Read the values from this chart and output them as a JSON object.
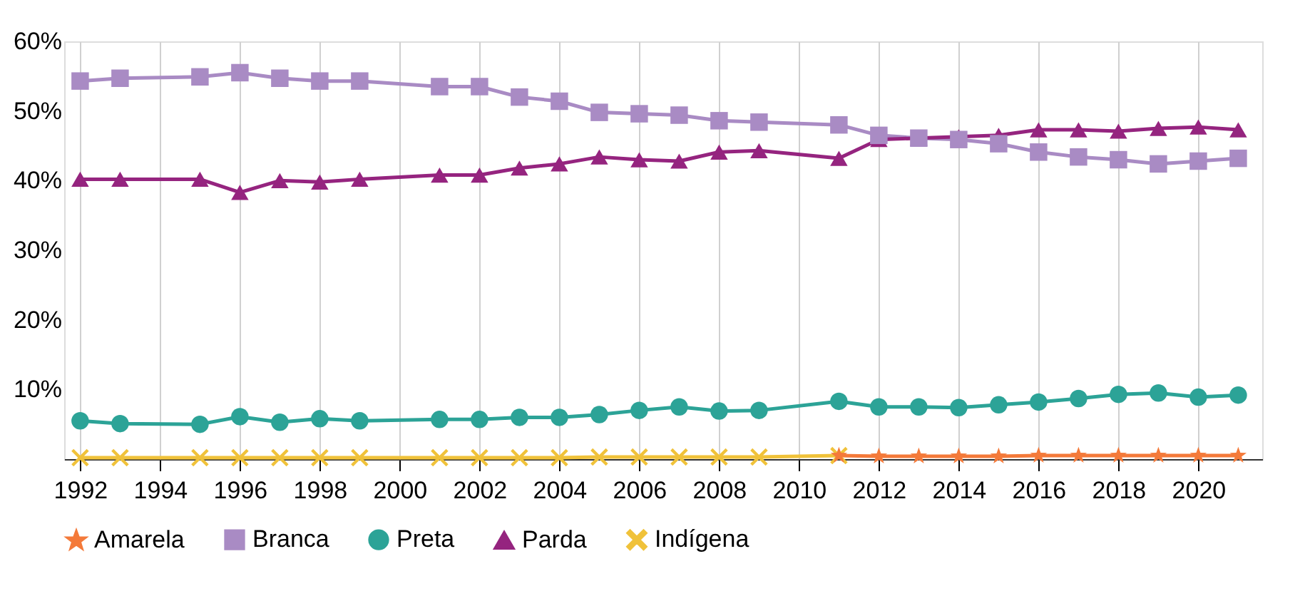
{
  "chart_data": {
    "type": "line",
    "xlim": [
      1991.6,
      2021.6
    ],
    "xticks": [
      1992,
      1994,
      1996,
      1998,
      2000,
      2002,
      2004,
      2006,
      2008,
      2010,
      2012,
      2014,
      2016,
      2018,
      2020
    ],
    "ylim": [
      0,
      60
    ],
    "yticks": [
      {
        "value": 10,
        "label": "10%"
      },
      {
        "value": 20,
        "label": "20%"
      },
      {
        "value": 30,
        "label": "30%"
      },
      {
        "value": 40,
        "label": "40%"
      },
      {
        "value": 50,
        "label": "50%"
      },
      {
        "value": 60,
        "label": "60%"
      }
    ],
    "grid": "x",
    "legend": "bottom",
    "line_style": "solid",
    "series": [
      {
        "name": "Amarela",
        "color": "#f47a3a",
        "marker": "star",
        "x": [
          2011,
          2012,
          2013,
          2014,
          2015,
          2016,
          2017,
          2018,
          2019,
          2020,
          2021
        ],
        "values": [
          0.5,
          0.4,
          0.4,
          0.4,
          0.4,
          0.5,
          0.5,
          0.5,
          0.5,
          0.5,
          0.5
        ]
      },
      {
        "name": "Branca",
        "color": "#a98bc4",
        "marker": "square",
        "x": [
          1992,
          1993,
          1995,
          1996,
          1997,
          1998,
          1999,
          2001,
          2002,
          2003,
          2004,
          2005,
          2006,
          2007,
          2008,
          2009,
          2011,
          2012,
          2013,
          2014,
          2015,
          2016,
          2017,
          2018,
          2019,
          2020,
          2021
        ],
        "values": [
          54.3,
          54.7,
          54.9,
          55.5,
          54.7,
          54.3,
          54.3,
          53.5,
          53.5,
          52.0,
          51.4,
          49.8,
          49.6,
          49.4,
          48.6,
          48.4,
          48.0,
          46.5,
          46.1,
          45.9,
          45.3,
          44.1,
          43.4,
          43.0,
          42.4,
          42.8,
          43.2
        ]
      },
      {
        "name": "Preta",
        "color": "#2ca397",
        "marker": "circle",
        "x": [
          1992,
          1993,
          1995,
          1996,
          1997,
          1998,
          1999,
          2001,
          2002,
          2003,
          2004,
          2005,
          2006,
          2007,
          2008,
          2009,
          2011,
          2012,
          2013,
          2014,
          2015,
          2016,
          2017,
          2018,
          2019,
          2020,
          2021
        ],
        "values": [
          5.5,
          5.1,
          5.0,
          6.1,
          5.3,
          5.8,
          5.5,
          5.7,
          5.7,
          6.0,
          6.0,
          6.4,
          7.0,
          7.5,
          6.9,
          7.0,
          8.3,
          7.5,
          7.5,
          7.4,
          7.8,
          8.2,
          8.7,
          9.3,
          9.5,
          8.9,
          9.2
        ]
      },
      {
        "name": "Parda",
        "color": "#95247f",
        "marker": "triangle",
        "x": [
          1992,
          1993,
          1995,
          1996,
          1997,
          1998,
          1999,
          2001,
          2002,
          2003,
          2004,
          2005,
          2006,
          2007,
          2008,
          2009,
          2011,
          2012,
          2013,
          2014,
          2015,
          2016,
          2017,
          2018,
          2019,
          2020,
          2021
        ],
        "values": [
          40.2,
          40.2,
          40.2,
          38.3,
          40.0,
          39.8,
          40.2,
          40.8,
          40.8,
          41.8,
          42.4,
          43.4,
          43.0,
          42.8,
          44.1,
          44.3,
          43.2,
          45.9,
          46.1,
          46.3,
          46.5,
          47.3,
          47.3,
          47.1,
          47.5,
          47.7,
          47.3
        ]
      },
      {
        "name": "Indígena",
        "color": "#f0c23a",
        "marker": "cross",
        "x": [
          1992,
          1993,
          1995,
          1996,
          1997,
          1998,
          1999,
          2001,
          2002,
          2003,
          2004,
          2005,
          2006,
          2007,
          2008,
          2009,
          2011
        ],
        "values": [
          0.2,
          0.2,
          0.2,
          0.2,
          0.2,
          0.2,
          0.2,
          0.2,
          0.2,
          0.2,
          0.2,
          0.3,
          0.3,
          0.3,
          0.3,
          0.3,
          0.5
        ]
      }
    ]
  }
}
